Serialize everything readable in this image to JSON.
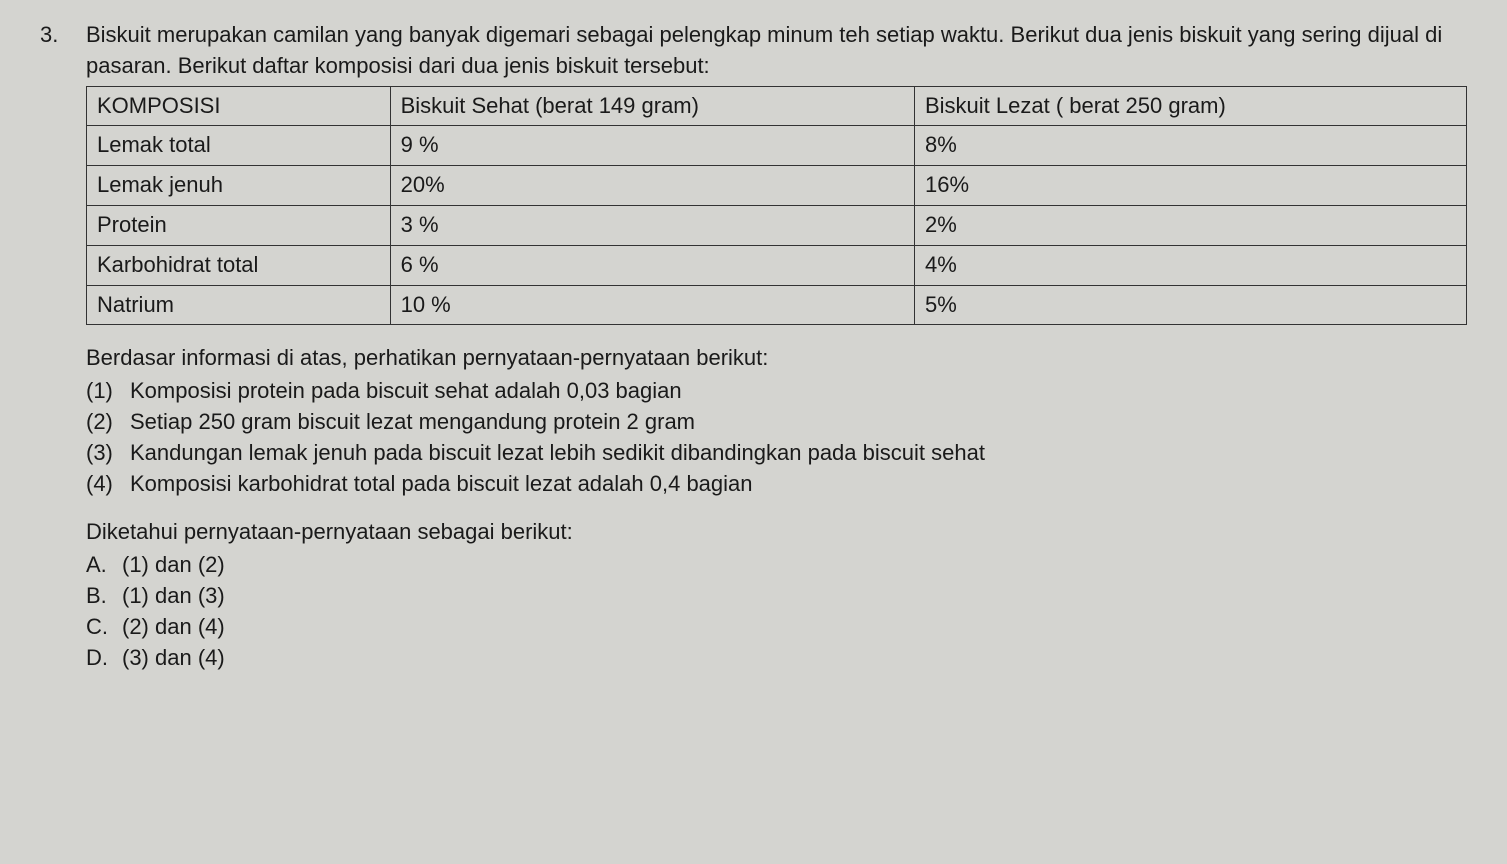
{
  "question": {
    "number": "3.",
    "intro_line1": "Biskuit merupakan camilan yang banyak digemari sebagai pelengkap minum teh setiap waktu.",
    "intro_line2": "Berikut dua jenis biskuit yang sering dijual di pasaran. Berikut daftar komposisi dari dua jenis",
    "intro_line3": "biskuit tersebut:"
  },
  "table": {
    "headers": {
      "col1": "KOMPOSISI",
      "col2": "Biskuit Sehat (berat 149 gram)",
      "col3": "Biskuit Lezat ( berat 250 gram)"
    },
    "rows": [
      {
        "komposisi": "Lemak total",
        "sehat": "9 %",
        "lezat": "8%"
      },
      {
        "komposisi": "Lemak jenuh",
        "sehat": "20%",
        "lezat": "16%"
      },
      {
        "komposisi": "Protein",
        "sehat": "3 %",
        "lezat": "2%"
      },
      {
        "komposisi": "Karbohidrat total",
        "sehat": "6 %",
        "lezat": "4%"
      },
      {
        "komposisi": "Natrium",
        "sehat": "10 %",
        "lezat": "5%"
      }
    ]
  },
  "statements": {
    "intro": "Berdasar informasi di atas, perhatikan pernyataan-pernyataan berikut:",
    "items": [
      {
        "num": "(1)",
        "text": "Komposisi protein pada biscuit sehat adalah 0,03 bagian"
      },
      {
        "num": "(2)",
        "text": "Setiap 250  gram biscuit lezat mengandung protein 2 gram"
      },
      {
        "num": "(3)",
        "text": "Kandungan lemak jenuh pada biscuit lezat lebih sedikit dibandingkan pada biscuit sehat"
      },
      {
        "num": "(4)",
        "text": "Komposisi karbohidrat total pada biscuit lezat adalah 0,4 bagian"
      }
    ]
  },
  "answers": {
    "intro": "Diketahui pernyataan-pernyataan sebagai berikut:",
    "options": [
      {
        "letter": "A.",
        "text": "(1) dan (2)"
      },
      {
        "letter": "B.",
        "text": "(1) dan (3)"
      },
      {
        "letter": "C.",
        "text": "(2) dan (4)"
      },
      {
        "letter": "D.",
        "text": "(3) dan (4)"
      }
    ]
  }
}
